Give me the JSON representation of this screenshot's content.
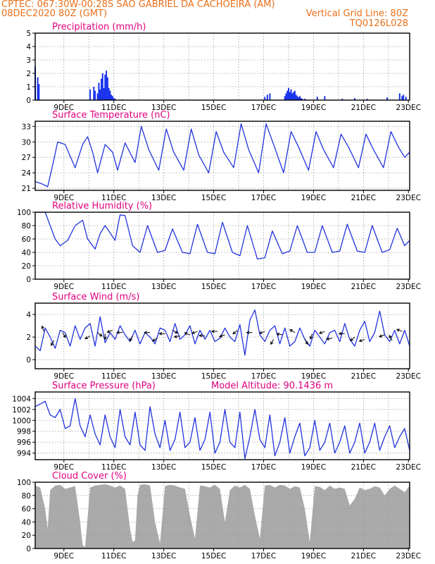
{
  "header": {
    "line1": "CPTEC:   067:30W-00:28S  SAO GABRIEL DA CACHOEIRA (AM)",
    "line2_left": "08DEC2020 80Z (GMT)",
    "line2_right": "Vertical Grid Line: 80Z",
    "line3_right": "TQ0126L028"
  },
  "colors": {
    "line": "#2233dd",
    "bar": "#1a33ee",
    "cloud": "#aaaaaa",
    "title": "#e0007f",
    "header": "#e8701a"
  },
  "chart_data": [
    {
      "type": "bar",
      "title": "Precipitation (mm/h)",
      "ylim": [
        0,
        5
      ],
      "yticks": [
        0,
        1,
        2,
        3,
        4,
        5
      ],
      "xticks": [
        "9DEC",
        "11DEC",
        "13DEC",
        "15DEC",
        "17DEC",
        "19DEC",
        "21DEC",
        "23DEC"
      ],
      "x": [
        0.0,
        0.1,
        0.15,
        2.2,
        2.35,
        2.4,
        2.5,
        2.55,
        2.6,
        2.65,
        2.7,
        2.75,
        2.8,
        2.85,
        2.9,
        2.95,
        3.0,
        3.05,
        3.1,
        3.15,
        3.2,
        3.5,
        9.2,
        9.3,
        9.4,
        10.0,
        10.05,
        10.1,
        10.15,
        10.2,
        10.25,
        10.3,
        10.35,
        10.4,
        10.45,
        10.5,
        10.55,
        10.6,
        10.65,
        10.7,
        10.8,
        11.3,
        11.6,
        12.3,
        12.8,
        13.3,
        14.1,
        14.6,
        14.7,
        14.75,
        14.85
      ],
      "values": [
        2.5,
        1.7,
        1.2,
        0.8,
        1.0,
        0.7,
        0.5,
        1.3,
        0.8,
        1.6,
        2.0,
        0.9,
        1.9,
        2.2,
        1.7,
        0.9,
        0.7,
        0.4,
        0.3,
        0.15,
        0.1,
        0.05,
        0.25,
        0.4,
        0.5,
        0.3,
        0.5,
        0.7,
        0.9,
        0.6,
        0.8,
        0.5,
        0.6,
        0.7,
        0.4,
        0.3,
        0.2,
        0.3,
        0.15,
        0.1,
        0.1,
        0.25,
        0.3,
        0.1,
        0.15,
        0.1,
        0.2,
        0.5,
        0.3,
        0.4,
        0.25
      ]
    },
    {
      "type": "line",
      "title": "Surface Temperature (nC)",
      "ylim": [
        20.6,
        34
      ],
      "yticks": [
        21,
        24,
        27,
        30,
        33
      ],
      "xticks": [
        "9DEC",
        "11DEC",
        "13DEC",
        "15DEC",
        "17DEC",
        "19DEC",
        "21DEC",
        "23DEC"
      ],
      "x": [
        0.0,
        0.3,
        0.5,
        0.7,
        0.9,
        1.2,
        1.6,
        1.9,
        2.1,
        2.3,
        2.5,
        2.8,
        3.1,
        3.3,
        3.6,
        4.0,
        4.25,
        4.55,
        4.95,
        5.25,
        5.55,
        5.95,
        6.25,
        6.55,
        6.95,
        7.25,
        7.55,
        7.95,
        8.25,
        8.55,
        8.95,
        9.25,
        9.55,
        9.95,
        10.25,
        10.55,
        10.95,
        11.25,
        11.55,
        11.95,
        12.25,
        12.55,
        12.95,
        13.25,
        13.55,
        13.95,
        14.25,
        14.55,
        14.8,
        15.0
      ],
      "values": [
        22.3,
        21.8,
        21.3,
        25.5,
        30.0,
        29.5,
        25.0,
        29.5,
        31.0,
        28.0,
        24.0,
        29.5,
        28.0,
        24.5,
        29.8,
        26.0,
        33.0,
        28.5,
        24.5,
        32.5,
        28.0,
        24.5,
        32.5,
        27.5,
        24.0,
        32.0,
        28.0,
        25.0,
        33.5,
        28.5,
        24.0,
        33.5,
        29.5,
        24.0,
        32.0,
        29.0,
        24.5,
        32.0,
        28.5,
        25.0,
        31.5,
        29.0,
        25.0,
        31.5,
        28.5,
        25.0,
        32.0,
        29.0,
        27.0,
        28.0
      ]
    },
    {
      "type": "line",
      "title": "Relative Humidity (%)",
      "ylim": [
        0,
        100
      ],
      "yticks": [
        0,
        20,
        40,
        60,
        80,
        100
      ],
      "xticks": [
        "9DEC",
        "11DEC",
        "13DEC",
        "15DEC",
        "17DEC",
        "19DEC",
        "21DEC",
        "23DEC"
      ],
      "x": [
        0.0,
        0.4,
        0.8,
        1.0,
        1.3,
        1.6,
        1.9,
        2.1,
        2.4,
        2.6,
        2.8,
        3.2,
        3.4,
        3.6,
        3.9,
        4.2,
        4.5,
        4.9,
        5.2,
        5.5,
        5.9,
        6.2,
        6.5,
        6.9,
        7.2,
        7.5,
        7.9,
        8.2,
        8.5,
        8.9,
        9.2,
        9.5,
        9.9,
        10.2,
        10.5,
        10.9,
        11.2,
        11.5,
        11.9,
        12.2,
        12.5,
        12.9,
        13.2,
        13.5,
        13.9,
        14.2,
        14.5,
        14.8,
        15.0
      ],
      "values": [
        100,
        100,
        60,
        50,
        58,
        80,
        88,
        60,
        45,
        68,
        80,
        58,
        96,
        95,
        50,
        40,
        80,
        40,
        43,
        75,
        40,
        38,
        82,
        40,
        38,
        85,
        40,
        35,
        80,
        30,
        32,
        72,
        38,
        42,
        80,
        40,
        40,
        80,
        40,
        42,
        82,
        42,
        40,
        80,
        40,
        44,
        76,
        50,
        58
      ]
    },
    {
      "type": "line",
      "title": "Surface Wind (m/s)",
      "ylim": [
        -0.8,
        5.0
      ],
      "yticks": [
        0,
        2,
        4
      ],
      "xticks": [
        "9DEC",
        "11DEC",
        "13DEC",
        "15DEC",
        "17DEC",
        "19DEC",
        "21DEC",
        "23DEC"
      ],
      "x": [
        0.0,
        0.2,
        0.4,
        0.6,
        0.8,
        1.0,
        1.2,
        1.4,
        1.6,
        1.8,
        2.0,
        2.2,
        2.4,
        2.6,
        2.8,
        3.0,
        3.2,
        3.4,
        3.6,
        3.8,
        4.0,
        4.2,
        4.4,
        4.6,
        4.8,
        5.0,
        5.2,
        5.4,
        5.6,
        5.8,
        6.0,
        6.2,
        6.4,
        6.6,
        6.8,
        7.0,
        7.2,
        7.4,
        7.6,
        7.8,
        8.0,
        8.2,
        8.4,
        8.6,
        8.8,
        9.0,
        9.2,
        9.4,
        9.6,
        9.8,
        10.0,
        10.2,
        10.4,
        10.6,
        10.8,
        11.0,
        11.2,
        11.4,
        11.6,
        11.8,
        12.0,
        12.2,
        12.4,
        12.6,
        12.8,
        13.0,
        13.2,
        13.4,
        13.6,
        13.8,
        14.0,
        14.2,
        14.4,
        14.6,
        14.8,
        15.0
      ],
      "values": [
        1.2,
        0.8,
        2.8,
        2.0,
        1.0,
        2.6,
        2.4,
        1.2,
        3.0,
        1.8,
        2.8,
        3.2,
        1.2,
        3.8,
        1.5,
        2.4,
        1.8,
        3.0,
        2.2,
        1.6,
        2.6,
        1.4,
        2.4,
        2.0,
        1.4,
        2.8,
        2.6,
        1.6,
        3.2,
        1.8,
        2.2,
        3.0,
        1.4,
        2.6,
        1.8,
        2.6,
        1.6,
        1.9,
        2.8,
        2.0,
        1.6,
        3.1,
        0.4,
        3.5,
        4.4,
        2.2,
        1.6,
        2.6,
        3.0,
        1.4,
        2.8,
        1.2,
        1.6,
        2.8,
        1.8,
        1.2,
        2.6,
        2.0,
        1.4,
        2.4,
        2.6,
        1.6,
        3.2,
        1.8,
        1.2,
        2.6,
        3.4,
        1.6,
        2.4,
        4.3,
        2.2,
        1.6,
        2.6,
        1.4,
        2.6,
        1.2
      ]
    },
    {
      "type": "line",
      "title": "Surface Pressure (hPa)",
      "annotation": "Model Altitude: 90.1436 m",
      "ylim": [
        992.8,
        1005.2
      ],
      "yticks": [
        994,
        996,
        998,
        1000,
        1002,
        1004
      ],
      "xticks": [
        "9DEC",
        "11DEC",
        "13DEC",
        "15DEC",
        "17DEC",
        "19DEC",
        "21DEC",
        "23DEC"
      ],
      "x": [
        0.0,
        0.2,
        0.4,
        0.6,
        0.8,
        1.0,
        1.2,
        1.4,
        1.6,
        1.8,
        2.0,
        2.2,
        2.4,
        2.6,
        2.8,
        3.0,
        3.2,
        3.4,
        3.6,
        3.8,
        4.0,
        4.2,
        4.4,
        4.6,
        4.8,
        5.0,
        5.2,
        5.4,
        5.6,
        5.8,
        6.0,
        6.2,
        6.4,
        6.6,
        6.8,
        7.0,
        7.2,
        7.4,
        7.6,
        7.8,
        8.0,
        8.2,
        8.4,
        8.6,
        8.8,
        9.0,
        9.2,
        9.4,
        9.6,
        9.8,
        10.0,
        10.2,
        10.4,
        10.6,
        10.8,
        11.0,
        11.2,
        11.4,
        11.6,
        11.8,
        12.0,
        12.2,
        12.4,
        12.6,
        12.8,
        13.0,
        13.2,
        13.4,
        13.6,
        13.8,
        14.0,
        14.2,
        14.4,
        14.6,
        14.8,
        15.0
      ],
      "values": [
        1002.5,
        1003.0,
        1003.5,
        1001.0,
        1000.5,
        1002.0,
        998.5,
        999.0,
        1004.0,
        999.0,
        997.0,
        1001.0,
        997.5,
        995.5,
        1001.0,
        997.0,
        995.0,
        1002.0,
        997.0,
        995.5,
        1001.5,
        995.5,
        994.5,
        1002.5,
        997.5,
        995.0,
        1000.0,
        994.5,
        996.5,
        1001.5,
        995.0,
        996.0,
        1000.5,
        994.5,
        996.5,
        1001.5,
        994.0,
        996.0,
        1002.0,
        996.0,
        995.0,
        1001.5,
        993.0,
        997.0,
        1002.0,
        996.5,
        995.0,
        1001.0,
        993.5,
        996.0,
        1000.5,
        994.0,
        997.0,
        999.5,
        993.5,
        995.0,
        1000.0,
        994.5,
        996.0,
        999.5,
        994.0,
        996.0,
        999.0,
        994.0,
        996.0,
        999.5,
        994.0,
        996.0,
        999.5,
        994.5,
        997.0,
        999.0,
        995.0,
        997.0,
        998.5,
        994.5
      ]
    },
    {
      "type": "area",
      "title": "Cloud Cover (%)",
      "ylim": [
        0,
        100
      ],
      "yticks": [
        0,
        20,
        40,
        60,
        80,
        100
      ],
      "xticks": [
        "9DEC",
        "11DEC",
        "13DEC",
        "15DEC",
        "17DEC",
        "19DEC",
        "21DEC",
        "23DEC"
      ],
      "x": [
        0.0,
        0.2,
        0.4,
        0.5,
        0.6,
        0.8,
        1.0,
        1.2,
        1.4,
        1.6,
        1.8,
        1.9,
        2.0,
        2.2,
        2.4,
        2.6,
        2.8,
        3.0,
        3.2,
        3.4,
        3.6,
        3.8,
        3.9,
        4.0,
        4.1,
        4.2,
        4.4,
        4.6,
        4.8,
        5.0,
        5.2,
        5.4,
        5.6,
        5.8,
        6.0,
        6.2,
        6.4,
        6.6,
        6.8,
        7.0,
        7.2,
        7.4,
        7.6,
        7.8,
        8.0,
        8.2,
        8.4,
        8.6,
        8.8,
        9.0,
        9.2,
        9.4,
        9.6,
        9.8,
        10.0,
        10.2,
        10.4,
        10.6,
        10.8,
        11.0,
        11.2,
        11.4,
        11.6,
        11.8,
        12.0,
        12.2,
        12.4,
        12.6,
        12.8,
        13.0,
        13.2,
        13.4,
        13.6,
        13.8,
        14.0,
        14.2,
        14.4,
        14.6,
        14.8,
        15.0
      ],
      "values": [
        95,
        92,
        60,
        30,
        88,
        95,
        96,
        90,
        92,
        94,
        40,
        5,
        2,
        92,
        95,
        96,
        97,
        95,
        92,
        95,
        90,
        30,
        10,
        12,
        80,
        96,
        97,
        95,
        40,
        8,
        94,
        96,
        95,
        92,
        90,
        50,
        15,
        95,
        94,
        92,
        96,
        90,
        40,
        88,
        95,
        92,
        96,
        90,
        50,
        15,
        95,
        96,
        92,
        96,
        95,
        90,
        94,
        92,
        60,
        10,
        94,
        93,
        88,
        95,
        90,
        92,
        90,
        65,
        75,
        92,
        88,
        90,
        94,
        92,
        80,
        90,
        95,
        90,
        85,
        95
      ]
    }
  ],
  "wind_vectors": [
    [
      0.35,
      2.5,
      110
    ],
    [
      0.75,
      1.7,
      240
    ],
    [
      1.1,
      2.4,
      300
    ],
    [
      2.2,
      2.1,
      210
    ],
    [
      2.5,
      2.4,
      320
    ],
    [
      2.8,
      2.3,
      270
    ],
    [
      3.1,
      2.6,
      200
    ],
    [
      3.5,
      2.4,
      180
    ],
    [
      3.9,
      2.1,
      240
    ],
    [
      4.6,
      2.4,
      180
    ],
    [
      4.9,
      1.9,
      210
    ],
    [
      5.2,
      2.3,
      180
    ],
    [
      5.5,
      2.6,
      330
    ],
    [
      5.8,
      2.1,
      190
    ],
    [
      6.2,
      2.2,
      160
    ],
    [
      6.5,
      2.5,
      200
    ],
    [
      6.8,
      2.1,
      175
    ],
    [
      7.3,
      2.5,
      180
    ],
    [
      7.6,
      2.2,
      200
    ],
    [
      8.1,
      2.6,
      220
    ],
    [
      8.7,
      2.4,
      180
    ],
    [
      9.2,
      2.5,
      200
    ],
    [
      9.55,
      1.8,
      240
    ],
    [
      9.9,
      2.2,
      170
    ],
    [
      10.4,
      2.4,
      150
    ],
    [
      10.8,
      1.8,
      300
    ],
    [
      11.1,
      2.3,
      250
    ],
    [
      11.6,
      2.5,
      200
    ],
    [
      11.9,
      1.9,
      190
    ],
    [
      12.4,
      2.3,
      180
    ],
    [
      12.8,
      2.0,
      220
    ],
    [
      13.2,
      1.8,
      200
    ],
    [
      14.0,
      2.2,
      200
    ],
    [
      14.3,
      1.7,
      120
    ],
    [
      14.7,
      2.5,
      160
    ]
  ]
}
